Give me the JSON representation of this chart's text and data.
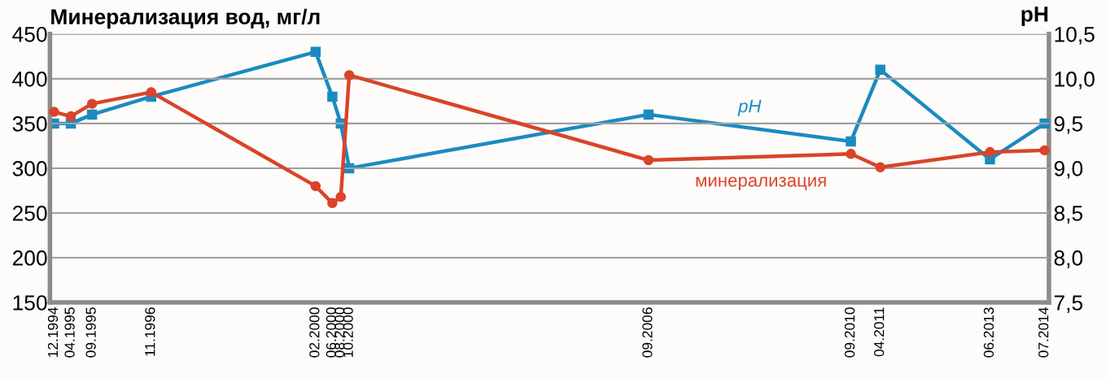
{
  "chart_data": {
    "type": "line",
    "ylabel": "Минерализация вод, мг/л",
    "y2label": "pH",
    "x": [
      "1994-12",
      "1995-04",
      "1995-09",
      "1996-11",
      "2000-02",
      "2000-06",
      "2000-08",
      "2000-10",
      "2006-09",
      "2010-09",
      "2011-04",
      "2013-06",
      "2014-07"
    ],
    "xlim": [
      "1994-11",
      "2014-08"
    ],
    "xticks": [
      {
        "value": "1994-12",
        "label": "12.1994"
      },
      {
        "value": "1995-04",
        "label": "04.1995"
      },
      {
        "value": "1995-09",
        "label": "09.1995"
      },
      {
        "value": "1996-11",
        "label": "11.1996"
      },
      {
        "value": "2000-02",
        "label": "02.2000"
      },
      {
        "value": "2000-06",
        "label": "06.2000"
      },
      {
        "value": "2000-08",
        "label": "08.2000"
      },
      {
        "value": "2000-10",
        "label": "10.2000"
      },
      {
        "value": "2006-09",
        "label": "09.2006"
      },
      {
        "value": "2010-09",
        "label": "09.2010"
      },
      {
        "value": "2011-04",
        "label": "04.2011"
      },
      {
        "value": "2013-06",
        "label": "06.2013"
      },
      {
        "value": "2014-07",
        "label": "07.2014"
      }
    ],
    "ylim": [
      150,
      450
    ],
    "yticks": [
      150,
      200,
      250,
      300,
      350,
      400,
      450
    ],
    "y2lim": [
      7.5,
      10.5
    ],
    "y2ticks": [
      {
        "value": 7.5,
        "label": "7,5"
      },
      {
        "value": 8.0,
        "label": "8,0"
      },
      {
        "value": 8.5,
        "label": "8,5"
      },
      {
        "value": 9.0,
        "label": "9,0"
      },
      {
        "value": 9.5,
        "label": "9,5"
      },
      {
        "value": 10.0,
        "label": "10,0"
      },
      {
        "value": 10.5,
        "label": "10,5"
      }
    ],
    "grid": "y",
    "legend": false,
    "series": [
      {
        "name": "минерализация",
        "color": "#d9442a",
        "marker": "circle",
        "values": [
          363,
          358,
          372,
          385,
          280,
          261,
          268,
          404,
          309,
          316,
          301,
          318,
          320
        ]
      },
      {
        "name": "pH",
        "color": "#1a8bc0",
        "marker": "square",
        "axis": "y2",
        "values": [
          9.5,
          9.5,
          9.6,
          9.8,
          10.3,
          9.8,
          9.5,
          9.0,
          9.6,
          9.3,
          10.1,
          9.1,
          9.5
        ]
      }
    ]
  }
}
